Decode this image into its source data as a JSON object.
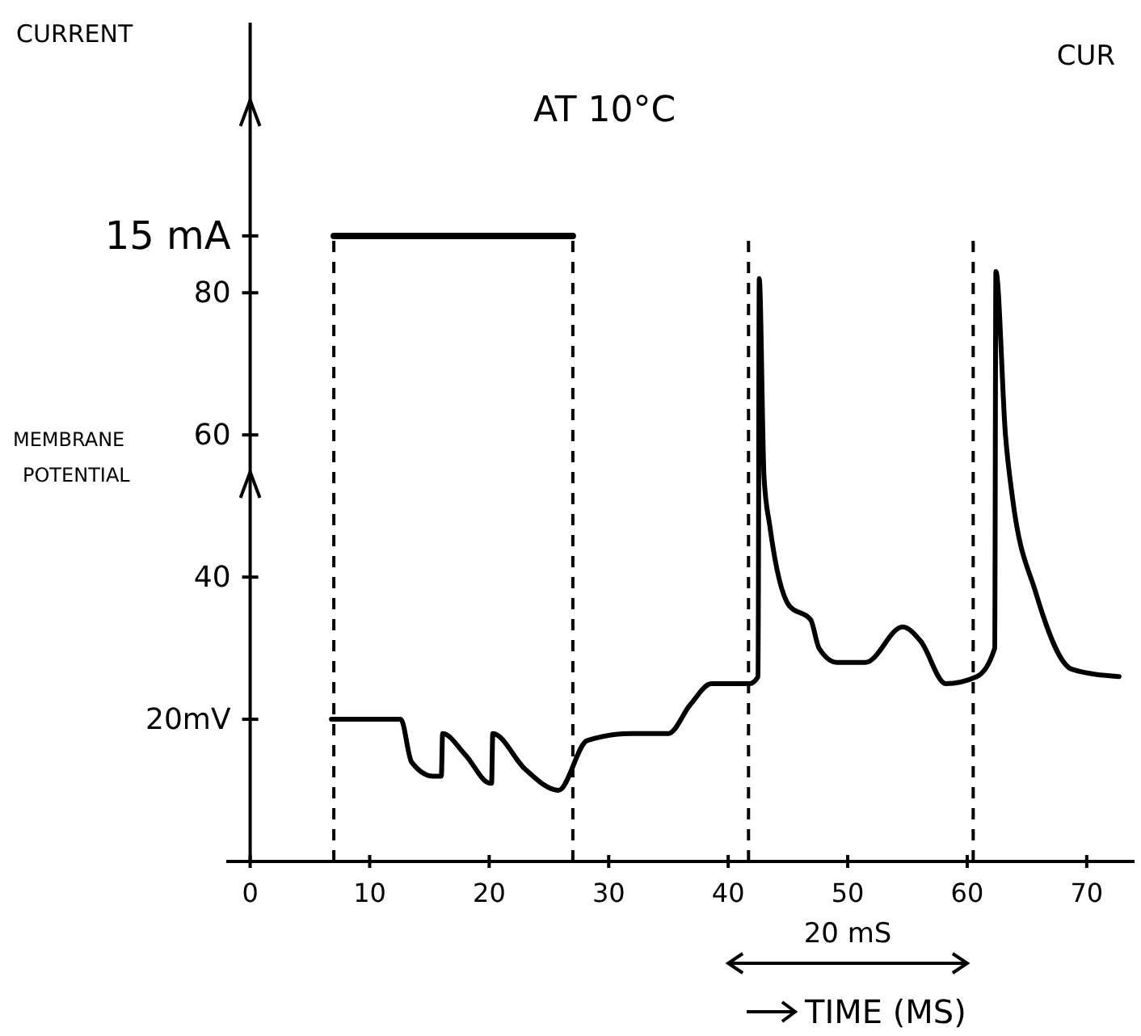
{
  "chart_data": {
    "type": "line",
    "title": "AT 10°C",
    "xlabel": "TIME (MS)",
    "ylabel": "MEMBRANE POTENTIAL",
    "y2label": "CURRENT",
    "annotations": [
      "20 mS",
      "CUR"
    ],
    "xlim": [
      -2,
      74
    ],
    "xticks": [
      0,
      10,
      20,
      30,
      40,
      50,
      60,
      70
    ],
    "ylim": [
      0,
      118
    ],
    "yticks": [
      {
        "value": 20,
        "label": "20mV"
      },
      40,
      60,
      80
    ],
    "line_style": "solid",
    "ref_lines": [
      {
        "axis": "y",
        "value": 88,
        "label": "15 mA",
        "line_style": "solid"
      },
      {
        "axis": "x",
        "value": 7,
        "label": null,
        "line_style": "dashed"
      },
      {
        "axis": "x",
        "value": 27,
        "label": null,
        "line_style": "dashed"
      },
      {
        "axis": "x",
        "value": 41.7,
        "label": null,
        "line_style": "dashed"
      },
      {
        "axis": "x",
        "value": 60.5,
        "label": null,
        "line_style": "dashed"
      }
    ],
    "series": [
      {
        "color": "#000000",
        "x": [
          6.8,
          12.6,
          13.5,
          15.3,
          16,
          16.1,
          18,
          20.1,
          20.2,
          20.3,
          23,
          25.8,
          28.2,
          31.9,
          35,
          36.8,
          38.6,
          41.8,
          42.5,
          42.6,
          43,
          43.5,
          45.1,
          46.9,
          47.6,
          49.1,
          51.5,
          54.6,
          56.1,
          58.2,
          60.8,
          62.3,
          62.4,
          63.2,
          63.8,
          65.7,
          68.8,
          72.7
        ],
        "values": [
          20,
          20,
          14,
          12,
          12,
          18,
          15,
          11,
          11,
          18,
          13,
          10,
          17,
          18,
          18,
          22,
          25,
          25,
          26,
          82,
          54,
          47,
          36,
          34,
          30,
          28,
          28,
          33,
          31,
          25,
          26,
          30,
          83,
          60,
          51,
          38,
          27,
          26
        ]
      }
    ]
  }
}
